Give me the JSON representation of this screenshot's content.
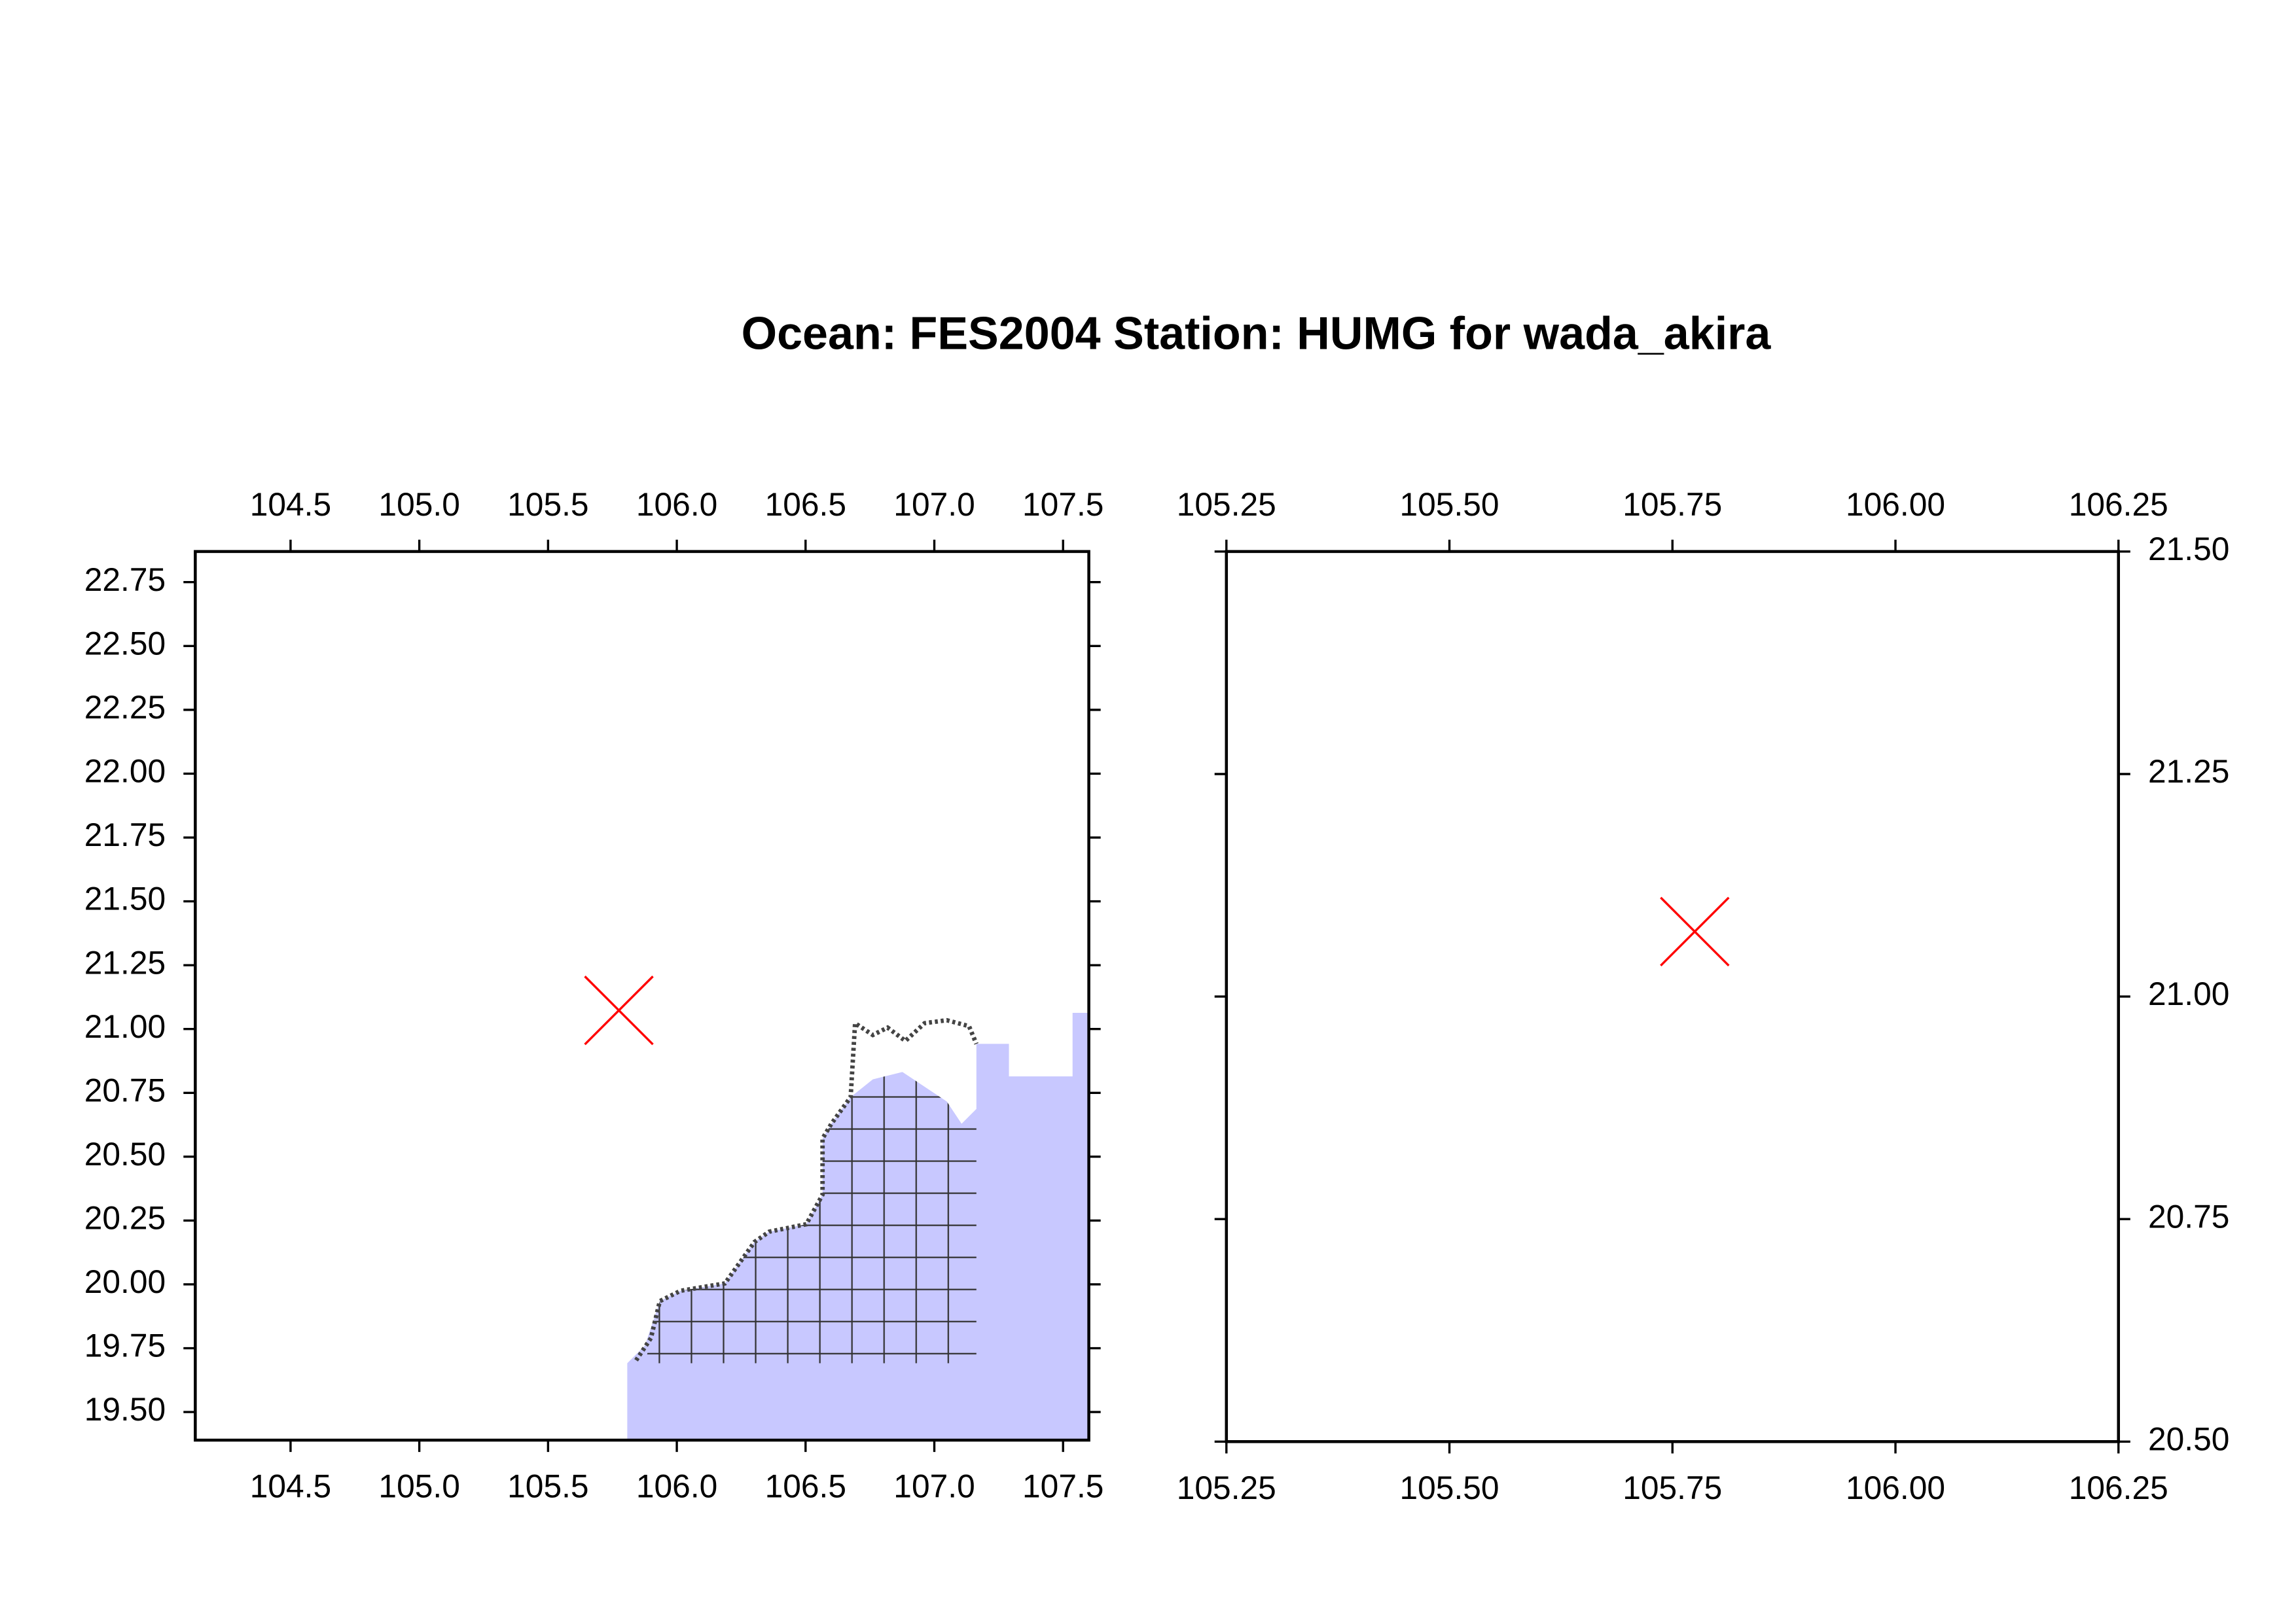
{
  "title": "Ocean: FES2004  Station: HUMG  for wada_akira",
  "chart_data": [
    {
      "type": "map",
      "xlim": [
        104.13,
        107.6
      ],
      "ylim": [
        19.39,
        22.87
      ],
      "xticks": [
        104.5,
        {
          "value": 105,
          "label": "105.0"
        },
        105.5,
        {
          "value": 106,
          "label": "106.0"
        },
        106.5,
        {
          "value": 107,
          "label": "107.0"
        },
        107.5
      ],
      "yticks": [
        {
          "value": 19.5,
          "label": "19.50"
        },
        19.75,
        {
          "value": 20,
          "label": "20.00"
        },
        20.25,
        {
          "value": 20.5,
          "label": "20.50"
        },
        20.75,
        {
          "value": 21,
          "label": "21.00"
        },
        21.25,
        {
          "value": 21.5,
          "label": "21.50"
        },
        21.75,
        {
          "value": 22,
          "label": "22.00"
        },
        22.25,
        {
          "value": 22.5,
          "label": "22.50"
        },
        22.75
      ],
      "y_axis_side": "left",
      "station": {
        "x": 105.775,
        "y": 21.073,
        "color": "#ff0000"
      },
      "ocean_color": "#c8c8ff"
    },
    {
      "type": "map",
      "xlim": [
        105.25,
        106.25
      ],
      "ylim": [
        20.5,
        21.5
      ],
      "xticks": [
        105.25,
        {
          "value": 105.5,
          "label": "105.50"
        },
        105.75,
        {
          "value": 106,
          "label": "106.00"
        },
        106.25
      ],
      "yticks": [
        {
          "value": 20.5,
          "label": "20.50"
        },
        20.75,
        {
          "value": 21,
          "label": "21.00"
        },
        21.25,
        {
          "value": 21.5,
          "label": "21.50"
        }
      ],
      "y_axis_side": "right",
      "station": {
        "x": 105.775,
        "y": 21.073,
        "color": "#ff0000"
      }
    }
  ]
}
